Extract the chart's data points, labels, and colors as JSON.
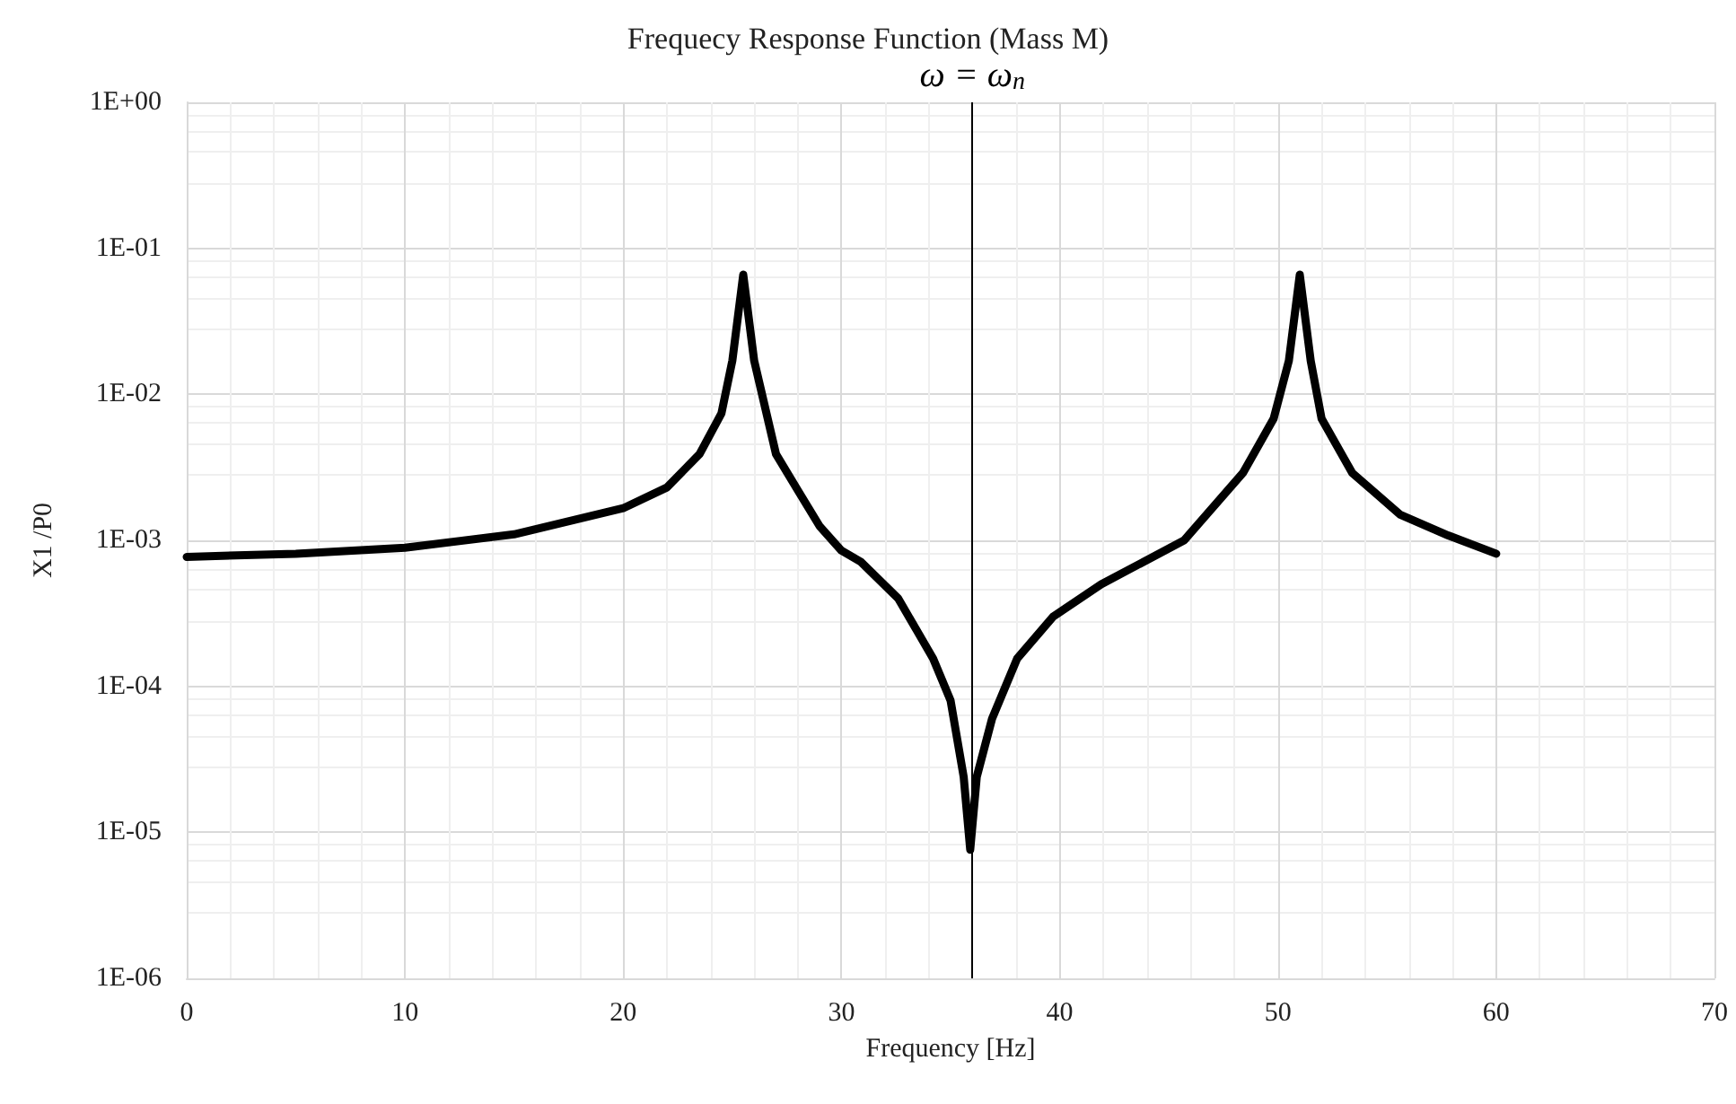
{
  "chart_data": {
    "type": "line",
    "title": "Frequecy Response Function (Mass M)",
    "xlabel": "Frequency [Hz]",
    "ylabel": "X1 /P0",
    "series": [
      {
        "color": "#000000",
        "x": [
          0,
          5,
          10,
          15,
          20,
          22,
          23.5,
          24.5,
          25,
          25.5,
          26,
          27,
          28,
          29,
          30,
          30.9,
          32.6,
          34.2,
          35,
          35.6,
          35.9,
          36.2,
          36.9,
          38.05,
          39.7,
          41.9,
          45.7,
          48.4,
          49.8,
          50.5,
          51,
          51.5,
          52,
          53.4,
          55.6,
          57.8,
          60
        ],
        "values": [
          0.00077,
          0.00081,
          0.00089,
          0.0011,
          0.00166,
          0.0023,
          0.0039,
          0.0074,
          0.017,
          0.066,
          0.017,
          0.0039,
          0.0022,
          0.00125,
          0.00085,
          0.00071,
          0.0004,
          0.000155,
          8e-05,
          2.4e-05,
          7.6e-06,
          2.4e-05,
          6e-05,
          0.000155,
          0.0003,
          0.0005,
          0.001,
          0.0029,
          0.0068,
          0.017,
          0.066,
          0.017,
          0.0068,
          0.0029,
          0.0015,
          0.00108,
          0.00081
        ]
      }
    ],
    "xlim": [
      0,
      70
    ],
    "xticks": [
      0,
      10,
      20,
      30,
      40,
      50,
      60,
      70
    ],
    "ylim": [
      1e-06,
      1
    ],
    "yticks": [
      {
        "value": 1e-06,
        "label": "1E-06"
      },
      {
        "value": 1e-05,
        "label": "1E-05"
      },
      {
        "value": 0.0001,
        "label": "1E-04"
      },
      {
        "value": 0.001,
        "label": "1E-03"
      },
      {
        "value": 0.01,
        "label": "1E-02"
      },
      {
        "value": 0.1,
        "label": "1E-01"
      },
      {
        "value": 1,
        "label": "1E+00"
      }
    ],
    "log": "y",
    "grid": true,
    "marker": "none",
    "line_style": "solid",
    "ref_lines": [
      {
        "axis": "x",
        "value": 36,
        "label": "ω = ω$_{n}$",
        "color": "#000000"
      }
    ]
  }
}
